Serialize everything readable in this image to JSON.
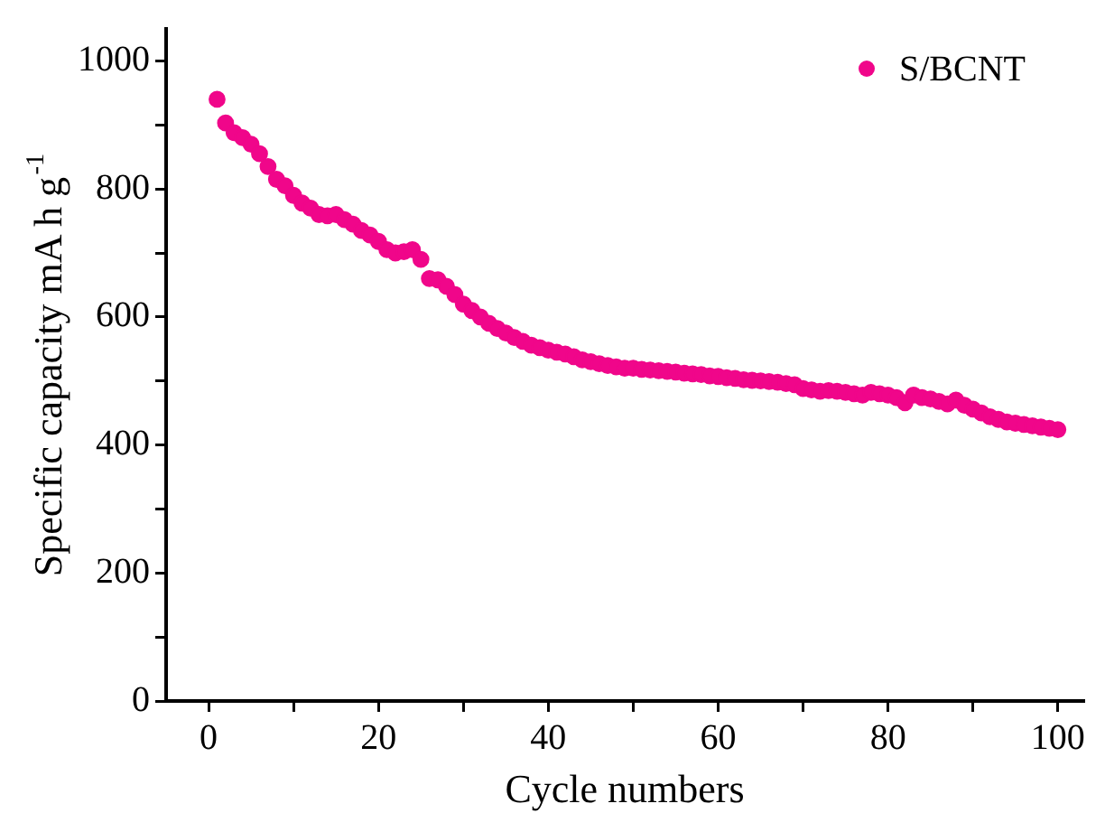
{
  "chart_data": {
    "type": "scatter",
    "xlabel": "Cycle numbers",
    "ylabel": "Specific capacity mA h g$^{-1}$",
    "x": [
      1,
      2,
      3,
      4,
      5,
      6,
      7,
      8,
      9,
      10,
      11,
      12,
      13,
      14,
      15,
      16,
      17,
      18,
      19,
      20,
      21,
      22,
      23,
      24,
      25,
      26,
      27,
      28,
      29,
      30,
      31,
      32,
      33,
      34,
      35,
      36,
      37,
      38,
      39,
      40,
      41,
      42,
      43,
      44,
      45,
      46,
      47,
      48,
      49,
      50,
      51,
      52,
      53,
      54,
      55,
      56,
      57,
      58,
      59,
      60,
      61,
      62,
      63,
      64,
      65,
      66,
      67,
      68,
      69,
      70,
      71,
      72,
      73,
      74,
      75,
      76,
      77,
      78,
      79,
      80,
      81,
      82,
      83,
      84,
      85,
      86,
      87,
      88,
      89,
      90,
      91,
      92,
      93,
      94,
      95,
      96,
      97,
      98,
      99,
      100
    ],
    "series": [
      {
        "name": "S/BCNT",
        "color": "#f0068a",
        "values": [
          940,
          903,
          888,
          880,
          870,
          855,
          835,
          815,
          805,
          790,
          778,
          770,
          760,
          758,
          760,
          752,
          745,
          735,
          728,
          718,
          705,
          700,
          702,
          705,
          690,
          660,
          658,
          648,
          635,
          620,
          610,
          600,
          590,
          582,
          575,
          568,
          562,
          556,
          552,
          548,
          545,
          542,
          538,
          533,
          530,
          527,
          524,
          522,
          520,
          520,
          518,
          517,
          516,
          515,
          514,
          512,
          511,
          510,
          508,
          507,
          505,
          504,
          502,
          501,
          500,
          499,
          498,
          496,
          494,
          488,
          486,
          484,
          485,
          484,
          482,
          480,
          478,
          482,
          480,
          478,
          474,
          466,
          478,
          474,
          472,
          468,
          464,
          470,
          462,
          456,
          450,
          444,
          440,
          436,
          434,
          432,
          430,
          428,
          426,
          424
        ]
      }
    ],
    "xlim": [
      -5,
      103
    ],
    "xticks": [
      0,
      {
        "value": 10,
        "label": null
      },
      20,
      {
        "value": 30,
        "label": null
      },
      40,
      {
        "value": 50,
        "label": null
      },
      60,
      {
        "value": 70,
        "label": null
      },
      80,
      {
        "value": 90,
        "label": null
      },
      100
    ],
    "ylim": [
      0,
      1050
    ],
    "yticks": [
      0,
      {
        "value": 100,
        "label": null
      },
      200,
      {
        "value": 300,
        "label": null
      },
      400,
      {
        "value": 500,
        "label": null
      },
      600,
      {
        "value": 700,
        "label": null
      },
      800,
      {
        "value": 900,
        "label": null
      },
      1000
    ],
    "grid": false,
    "legend": "top right",
    "marker": "circle"
  }
}
